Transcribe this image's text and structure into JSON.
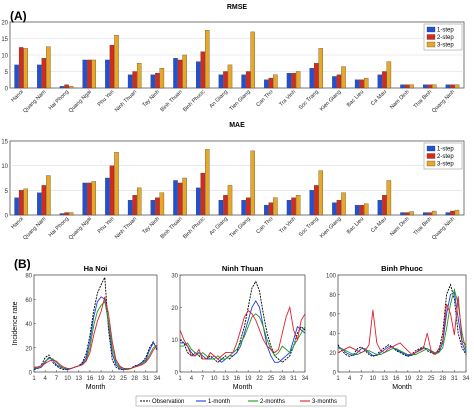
{
  "panel_labels": {
    "a": "(A)",
    "b": "(B)"
  },
  "colors": {
    "step1": "#1f50d8",
    "step2": "#d42b1e",
    "step3": "#e8a726",
    "observation": "#000000",
    "month1": "#1b3fe0",
    "month2": "#1f9a1f",
    "month3": "#e01f2f",
    "grid": "#d9d9d9",
    "axis": "#555555"
  },
  "chart_data": [
    {
      "type": "bar",
      "title": "RMSE",
      "categories": [
        "Hanoi",
        "Quang Nam",
        "Hai Phong",
        "Quang Ngai",
        "Phu Yen",
        "Ninh Thuan",
        "Tay Ninh",
        "Binh Thuan",
        "Binh Phuoc",
        "An Giang",
        "Tien Giang",
        "Can Tho",
        "Tra Vinh",
        "Soc Trang",
        "Kien Giang",
        "Bac Lieu",
        "Ca Mau",
        "Nam Dinh",
        "Thai Binh",
        "Quang Ninh"
      ],
      "series": [
        {
          "name": "1-step",
          "values": [
            7.0,
            7.0,
            0.5,
            8.5,
            8.5,
            4.0,
            4.0,
            9.0,
            8.0,
            4.0,
            4.0,
            2.5,
            4.5,
            6.0,
            3.5,
            2.5,
            4.0,
            1.0,
            1.0,
            1.0
          ]
        },
        {
          "name": "2-step",
          "values": [
            12.3,
            9.0,
            1.0,
            8.5,
            13.0,
            5.0,
            4.5,
            8.5,
            11.0,
            5.0,
            5.0,
            3.0,
            4.5,
            7.5,
            4.0,
            2.5,
            5.0,
            1.0,
            1.0,
            1.0
          ]
        },
        {
          "name": "3-step",
          "values": [
            12.0,
            12.5,
            0.5,
            8.5,
            16.0,
            7.5,
            6.0,
            10.0,
            17.5,
            7.0,
            17.0,
            4.0,
            5.0,
            12.0,
            6.5,
            3.0,
            8.0,
            1.0,
            1.0,
            1.0
          ]
        }
      ],
      "ylim": [
        0,
        20
      ],
      "yticks": [
        "0",
        "5",
        "10",
        "15",
        "20"
      ],
      "grid": true,
      "legend": "top-right"
    },
    {
      "type": "bar",
      "title": "MAE",
      "categories": [
        "Hanoi",
        "Quang Nam",
        "Hai Phong",
        "Quang Ngai",
        "Phu Yen",
        "Ninh Thuan",
        "Tay Ninh",
        "Binh Thuan",
        "Binh Phuoc",
        "An Giang",
        "Tien Giang",
        "Can Tho",
        "Tra Vinh",
        "Soc Trang",
        "Kien Giang",
        "Bac Lieu",
        "Ca Mau",
        "Nam Dinh",
        "Thai Binh",
        "Quang Ninh"
      ],
      "series": [
        {
          "name": "1-step",
          "values": [
            3.5,
            4.5,
            0.3,
            6.5,
            7.5,
            3.0,
            3.0,
            7.0,
            5.5,
            3.0,
            3.0,
            2.0,
            3.0,
            5.0,
            2.5,
            2.0,
            3.0,
            0.5,
            0.5,
            0.5
          ]
        },
        {
          "name": "2-step",
          "values": [
            5.0,
            6.0,
            0.5,
            6.5,
            10.0,
            4.0,
            3.5,
            6.5,
            8.5,
            4.0,
            3.5,
            2.5,
            3.5,
            6.0,
            3.0,
            2.0,
            4.0,
            0.5,
            0.5,
            0.8
          ]
        },
        {
          "name": "3-step",
          "values": [
            5.3,
            8.0,
            0.5,
            6.8,
            12.7,
            5.5,
            4.5,
            7.5,
            13.3,
            6.0,
            13.0,
            3.5,
            4.0,
            9.0,
            4.5,
            2.3,
            7.0,
            0.7,
            0.8,
            1.0
          ]
        }
      ],
      "ylim": [
        0,
        15
      ],
      "yticks": [
        "0",
        "5",
        "10",
        "15"
      ],
      "grid": true,
      "legend": "top-right"
    },
    {
      "type": "line",
      "title": "Ha Noi",
      "xlabel": "Month",
      "ylabel": "Incidence rate",
      "xlim": [
        1,
        34
      ],
      "ylim": [
        0,
        80
      ],
      "xticks": [
        1,
        4,
        7,
        10,
        13,
        16,
        19,
        22,
        25,
        28,
        31,
        34
      ],
      "yticks": [
        0,
        20,
        40,
        60,
        80
      ],
      "x": [
        1,
        2,
        3,
        4,
        5,
        6,
        7,
        8,
        9,
        10,
        11,
        12,
        13,
        14,
        15,
        16,
        17,
        18,
        19,
        20,
        21,
        22,
        23,
        24,
        25,
        26,
        27,
        28,
        29,
        30,
        31,
        32,
        33,
        34
      ],
      "series": [
        {
          "name": "Observation",
          "values": [
            2,
            3,
            6,
            12,
            14,
            8,
            5,
            3,
            2,
            2,
            3,
            4,
            5,
            8,
            15,
            30,
            50,
            65,
            72,
            78,
            35,
            10,
            4,
            2,
            2,
            2,
            3,
            5,
            6,
            8,
            12,
            20,
            25,
            18
          ]
        },
        {
          "name": "1-month",
          "values": [
            3,
            3,
            4,
            8,
            12,
            10,
            6,
            4,
            3,
            2,
            3,
            4,
            5,
            7,
            12,
            25,
            45,
            58,
            62,
            60,
            40,
            15,
            6,
            3,
            2,
            2,
            3,
            4,
            6,
            8,
            10,
            18,
            24,
            20
          ]
        },
        {
          "name": "2-months",
          "values": [
            3,
            4,
            5,
            9,
            11,
            11,
            8,
            5,
            3,
            3,
            3,
            4,
            5,
            6,
            10,
            20,
            38,
            50,
            55,
            58,
            42,
            20,
            8,
            4,
            3,
            2,
            3,
            4,
            5,
            7,
            9,
            14,
            20,
            22
          ]
        },
        {
          "name": "3-months",
          "values": [
            4,
            4,
            5,
            7,
            9,
            10,
            9,
            6,
            4,
            3,
            3,
            4,
            5,
            6,
            9,
            16,
            30,
            42,
            50,
            62,
            48,
            25,
            10,
            5,
            3,
            3,
            3,
            4,
            5,
            6,
            8,
            12,
            18,
            22
          ]
        }
      ]
    },
    {
      "type": "line",
      "title": "Ninh Thuan",
      "xlabel": "Month",
      "xlim": [
        1,
        34
      ],
      "ylim": [
        0,
        30
      ],
      "xticks": [
        1,
        4,
        7,
        10,
        13,
        16,
        19,
        22,
        25,
        28,
        31,
        34
      ],
      "yticks": [
        0,
        10,
        20,
        30
      ],
      "x": [
        1,
        2,
        3,
        4,
        5,
        6,
        7,
        8,
        9,
        10,
        11,
        12,
        13,
        14,
        15,
        16,
        17,
        18,
        19,
        20,
        21,
        22,
        23,
        24,
        25,
        26,
        27,
        28,
        29,
        30,
        31,
        32,
        33,
        34
      ],
      "series": [
        {
          "name": "Observation",
          "values": [
            10,
            9,
            6,
            5,
            6,
            5,
            4,
            4,
            5,
            4,
            3,
            4,
            5,
            4,
            5,
            6,
            10,
            14,
            20,
            26,
            28,
            25,
            18,
            12,
            8,
            5,
            4,
            3,
            4,
            5,
            8,
            12,
            14,
            13
          ]
        },
        {
          "name": "1-month",
          "values": [
            9,
            9,
            8,
            6,
            5,
            6,
            5,
            4,
            4,
            5,
            4,
            3,
            4,
            5,
            5,
            6,
            8,
            12,
            16,
            20,
            22,
            20,
            14,
            8,
            5,
            3,
            3,
            4,
            5,
            6,
            10,
            14,
            13,
            12
          ]
        },
        {
          "name": "2-months",
          "values": [
            8,
            8,
            9,
            7,
            6,
            5,
            6,
            5,
            4,
            4,
            5,
            4,
            4,
            5,
            6,
            7,
            9,
            11,
            14,
            17,
            18,
            17,
            14,
            10,
            7,
            5,
            6,
            8,
            7,
            6,
            8,
            10,
            12,
            14
          ]
        },
        {
          "name": "3-months",
          "values": [
            13,
            10,
            8,
            5,
            5,
            7,
            4,
            4,
            6,
            5,
            4,
            5,
            6,
            6,
            6,
            9,
            13,
            17,
            19,
            18,
            16,
            13,
            10,
            8,
            7,
            6,
            7,
            12,
            17,
            20,
            13,
            10,
            16,
            18
          ]
        }
      ]
    },
    {
      "type": "line",
      "title": "Binh Phuoc",
      "xlabel": "Month",
      "xlim": [
        1,
        34
      ],
      "ylim": [
        0,
        100
      ],
      "xticks": [
        1,
        4,
        7,
        10,
        13,
        16,
        19,
        22,
        25,
        28,
        31,
        34
      ],
      "yticks": [
        0,
        20,
        40,
        60,
        80,
        100
      ],
      "x": [
        1,
        2,
        3,
        4,
        5,
        6,
        7,
        8,
        9,
        10,
        11,
        12,
        13,
        14,
        15,
        16,
        17,
        18,
        19,
        20,
        21,
        22,
        23,
        24,
        25,
        26,
        27,
        28,
        29,
        30,
        31,
        32,
        33,
        34
      ],
      "series": [
        {
          "name": "Observation",
          "values": [
            28,
            22,
            18,
            16,
            18,
            24,
            26,
            22,
            18,
            16,
            18,
            22,
            25,
            28,
            26,
            22,
            20,
            18,
            16,
            18,
            22,
            24,
            26,
            22,
            20,
            18,
            22,
            40,
            80,
            90,
            75,
            40,
            25,
            18
          ]
        },
        {
          "name": "1-month",
          "values": [
            26,
            24,
            20,
            18,
            17,
            20,
            24,
            24,
            20,
            17,
            17,
            20,
            23,
            26,
            26,
            23,
            21,
            19,
            17,
            17,
            20,
            23,
            25,
            24,
            21,
            19,
            20,
            30,
            60,
            80,
            82,
            55,
            30,
            20
          ]
        },
        {
          "name": "2-months",
          "values": [
            24,
            24,
            22,
            20,
            18,
            18,
            20,
            22,
            22,
            20,
            18,
            18,
            20,
            22,
            24,
            24,
            22,
            20,
            18,
            18,
            18,
            20,
            22,
            24,
            22,
            20,
            20,
            25,
            45,
            70,
            85,
            70,
            40,
            22
          ]
        },
        {
          "name": "3-months",
          "values": [
            20,
            22,
            24,
            26,
            24,
            22,
            20,
            22,
            28,
            64,
            30,
            22,
            20,
            24,
            26,
            28,
            30,
            26,
            22,
            18,
            20,
            22,
            24,
            40,
            22,
            18,
            24,
            32,
            70,
            60,
            38,
            78,
            32,
            28
          ]
        }
      ]
    }
  ],
  "legend_bottom": [
    "Observation",
    "1-month",
    "2-months",
    "3-months"
  ]
}
